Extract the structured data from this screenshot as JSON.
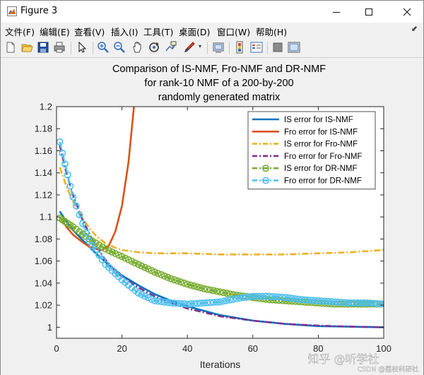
{
  "window": {
    "title": "Figure 3",
    "controls": [
      "minimize",
      "maximize",
      "close"
    ]
  },
  "menu": {
    "items": [
      {
        "label": "文件(F)"
      },
      {
        "label": "编辑(E)"
      },
      {
        "label": "查看(V)"
      },
      {
        "label": "插入(I)"
      },
      {
        "label": "工具(T)"
      },
      {
        "label": "桌面(D)"
      },
      {
        "label": "窗口(W)"
      },
      {
        "label": "帮助(H)"
      }
    ]
  },
  "toolbar": {
    "icons": [
      "new-figure-icon",
      "open-icon",
      "save-icon",
      "print-icon",
      "pointer-icon",
      "zoom-in-icon",
      "zoom-out-icon",
      "pan-icon",
      "rotate-icon",
      "data-cursor-icon",
      "brush-icon",
      "brush-dropdown-icon",
      "link-plot-icon",
      "colorbar-icon",
      "legend-icon",
      "hide-plot-tools-icon",
      "show-plot-tools-icon"
    ]
  },
  "watermark": {
    "main": "知乎 @听学社",
    "sub": "CSDN @荔枝科研社"
  },
  "colors": {
    "is_nmf_is": "#0072bd",
    "is_nmf_fro": "#d95319",
    "fro_nmf_is": "#edb120",
    "fro_nmf_fro": "#7e2f8e",
    "dr_nmf_is": "#77ac30",
    "dr_nmf_fro": "#4dbeee"
  },
  "chart_data": {
    "type": "line",
    "title": [
      "Comparison of IS-NMF, Fro-NMF and DR-NMF",
      "for rank-10 NMF of a 200-by-200",
      "randomly generated matrix"
    ],
    "xlabel": "Iterations",
    "ylabel": "",
    "xlim": [
      0,
      100
    ],
    "ylim": [
      0.99,
      1.2
    ],
    "xticks": [
      0,
      20,
      40,
      60,
      80,
      100
    ],
    "yticks": [
      1,
      1.02,
      1.04,
      1.06,
      1.08,
      1.1,
      1.12,
      1.14,
      1.16,
      1.18,
      1.2
    ],
    "grid": false,
    "legend_position": "top-right",
    "series": [
      {
        "name": "IS error for IS-NMF",
        "style": "solid",
        "marker": "none",
        "x": [
          1,
          3,
          5,
          8,
          10,
          12,
          15,
          18,
          20,
          25,
          30,
          35,
          40,
          50,
          60,
          70,
          80,
          90,
          100
        ],
        "y": [
          1.105,
          1.096,
          1.088,
          1.079,
          1.073,
          1.067,
          1.059,
          1.052,
          1.047,
          1.038,
          1.03,
          1.024,
          1.019,
          1.011,
          1.006,
          1.003,
          1.001,
          1.0005,
          1.0
        ]
      },
      {
        "name": "Fro error for IS-NMF",
        "style": "solid",
        "marker": "none",
        "x": [
          1,
          3,
          5,
          8,
          10,
          12,
          14,
          16,
          18,
          20,
          22,
          24
        ],
        "y": [
          1.1,
          1.091,
          1.084,
          1.077,
          1.073,
          1.071,
          1.07,
          1.074,
          1.087,
          1.11,
          1.15,
          1.21
        ]
      },
      {
        "name": "IS error for Fro-NMF",
        "style": "dashdot",
        "marker": "none",
        "x": [
          1,
          3,
          5,
          8,
          10,
          12,
          15,
          18,
          20,
          25,
          30,
          40,
          50,
          60,
          70,
          80,
          90,
          100
        ],
        "y": [
          1.145,
          1.128,
          1.114,
          1.099,
          1.09,
          1.083,
          1.076,
          1.072,
          1.07,
          1.068,
          1.067,
          1.067,
          1.066,
          1.066,
          1.066,
          1.067,
          1.068,
          1.07
        ]
      },
      {
        "name": "Fro error for Fro-NMF",
        "style": "dashdot",
        "marker": "none",
        "x": [
          1,
          3,
          5,
          8,
          10,
          12,
          15,
          18,
          20,
          25,
          30,
          35,
          40,
          50,
          60,
          70,
          80,
          90,
          100
        ],
        "y": [
          1.165,
          1.14,
          1.12,
          1.097,
          1.085,
          1.074,
          1.061,
          1.051,
          1.046,
          1.036,
          1.028,
          1.022,
          1.017,
          1.01,
          1.006,
          1.003,
          1.0015,
          1.0005,
          1.0
        ]
      },
      {
        "name": "IS error for DR-NMF",
        "style": "dashdot",
        "marker": "circle",
        "x": [
          1,
          5,
          10,
          15,
          20,
          25,
          30,
          35,
          40,
          45,
          50,
          55,
          60,
          65,
          70,
          75,
          80,
          85,
          90,
          95,
          100
        ],
        "y": [
          1.099,
          1.091,
          1.08,
          1.071,
          1.064,
          1.057,
          1.05,
          1.044,
          1.039,
          1.035,
          1.032,
          1.029,
          1.027,
          1.025,
          1.024,
          1.023,
          1.022,
          1.021,
          1.021,
          1.021,
          1.021
        ]
      },
      {
        "name": "Fro error for DR-NMF",
        "style": "dashdot",
        "marker": "circle",
        "x": [
          1,
          5,
          10,
          15,
          20,
          25,
          30,
          35,
          40,
          45,
          50,
          55,
          60,
          65,
          70,
          75,
          80,
          85,
          90,
          95,
          100
        ],
        "y": [
          1.168,
          1.118,
          1.078,
          1.057,
          1.043,
          1.031,
          1.024,
          1.022,
          1.021,
          1.022,
          1.023,
          1.026,
          1.028,
          1.028,
          1.027,
          1.025,
          1.024,
          1.023,
          1.022,
          1.022,
          1.021
        ]
      }
    ]
  }
}
